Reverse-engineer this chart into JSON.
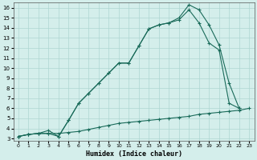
{
  "xlabel": "Humidex (Indice chaleur)",
  "background_color": "#d4eeeb",
  "grid_color": "#aed6d2",
  "line_color": "#1a6b5a",
  "xlim": [
    -0.5,
    23.5
  ],
  "ylim": [
    2.8,
    16.5
  ],
  "xticks": [
    0,
    1,
    2,
    3,
    4,
    5,
    6,
    7,
    8,
    9,
    10,
    11,
    12,
    13,
    14,
    15,
    16,
    17,
    18,
    19,
    20,
    21,
    22,
    23
  ],
  "yticks": [
    3,
    4,
    5,
    6,
    7,
    8,
    9,
    10,
    11,
    12,
    13,
    14,
    15,
    16
  ],
  "line1_x": [
    0,
    1,
    2,
    3,
    4,
    5,
    6,
    7,
    8,
    9,
    10,
    11,
    12,
    13,
    14,
    15,
    16,
    17,
    18,
    19,
    20,
    21,
    22,
    23
  ],
  "line1_y": [
    3.2,
    3.4,
    3.5,
    3.5,
    3.5,
    3.6,
    3.7,
    3.9,
    4.1,
    4.3,
    4.5,
    4.6,
    4.7,
    4.8,
    4.9,
    5.0,
    5.1,
    5.2,
    5.4,
    5.5,
    5.6,
    5.7,
    5.8,
    6.0
  ],
  "line2_x": [
    0,
    1,
    2,
    3,
    4,
    5,
    6,
    7,
    8,
    9,
    10,
    11,
    12,
    13,
    14,
    15,
    16,
    17,
    18,
    19,
    20,
    21,
    22
  ],
  "line2_y": [
    3.2,
    3.4,
    3.5,
    3.8,
    3.2,
    4.8,
    6.5,
    7.5,
    8.5,
    9.5,
    10.5,
    10.5,
    12.2,
    13.9,
    14.3,
    14.5,
    15.0,
    16.3,
    15.8,
    14.3,
    12.3,
    8.5,
    6.0
  ],
  "line3_x": [
    0,
    1,
    2,
    3,
    4,
    5,
    6,
    7,
    8,
    9,
    10,
    11,
    12,
    13,
    14,
    15,
    16,
    17,
    18,
    19,
    20,
    21,
    22
  ],
  "line3_y": [
    3.2,
    3.4,
    3.5,
    3.5,
    3.2,
    4.8,
    6.5,
    7.5,
    8.5,
    9.5,
    10.5,
    10.5,
    12.2,
    13.9,
    14.3,
    14.5,
    14.8,
    15.8,
    14.5,
    12.5,
    11.8,
    6.5,
    6.0
  ]
}
